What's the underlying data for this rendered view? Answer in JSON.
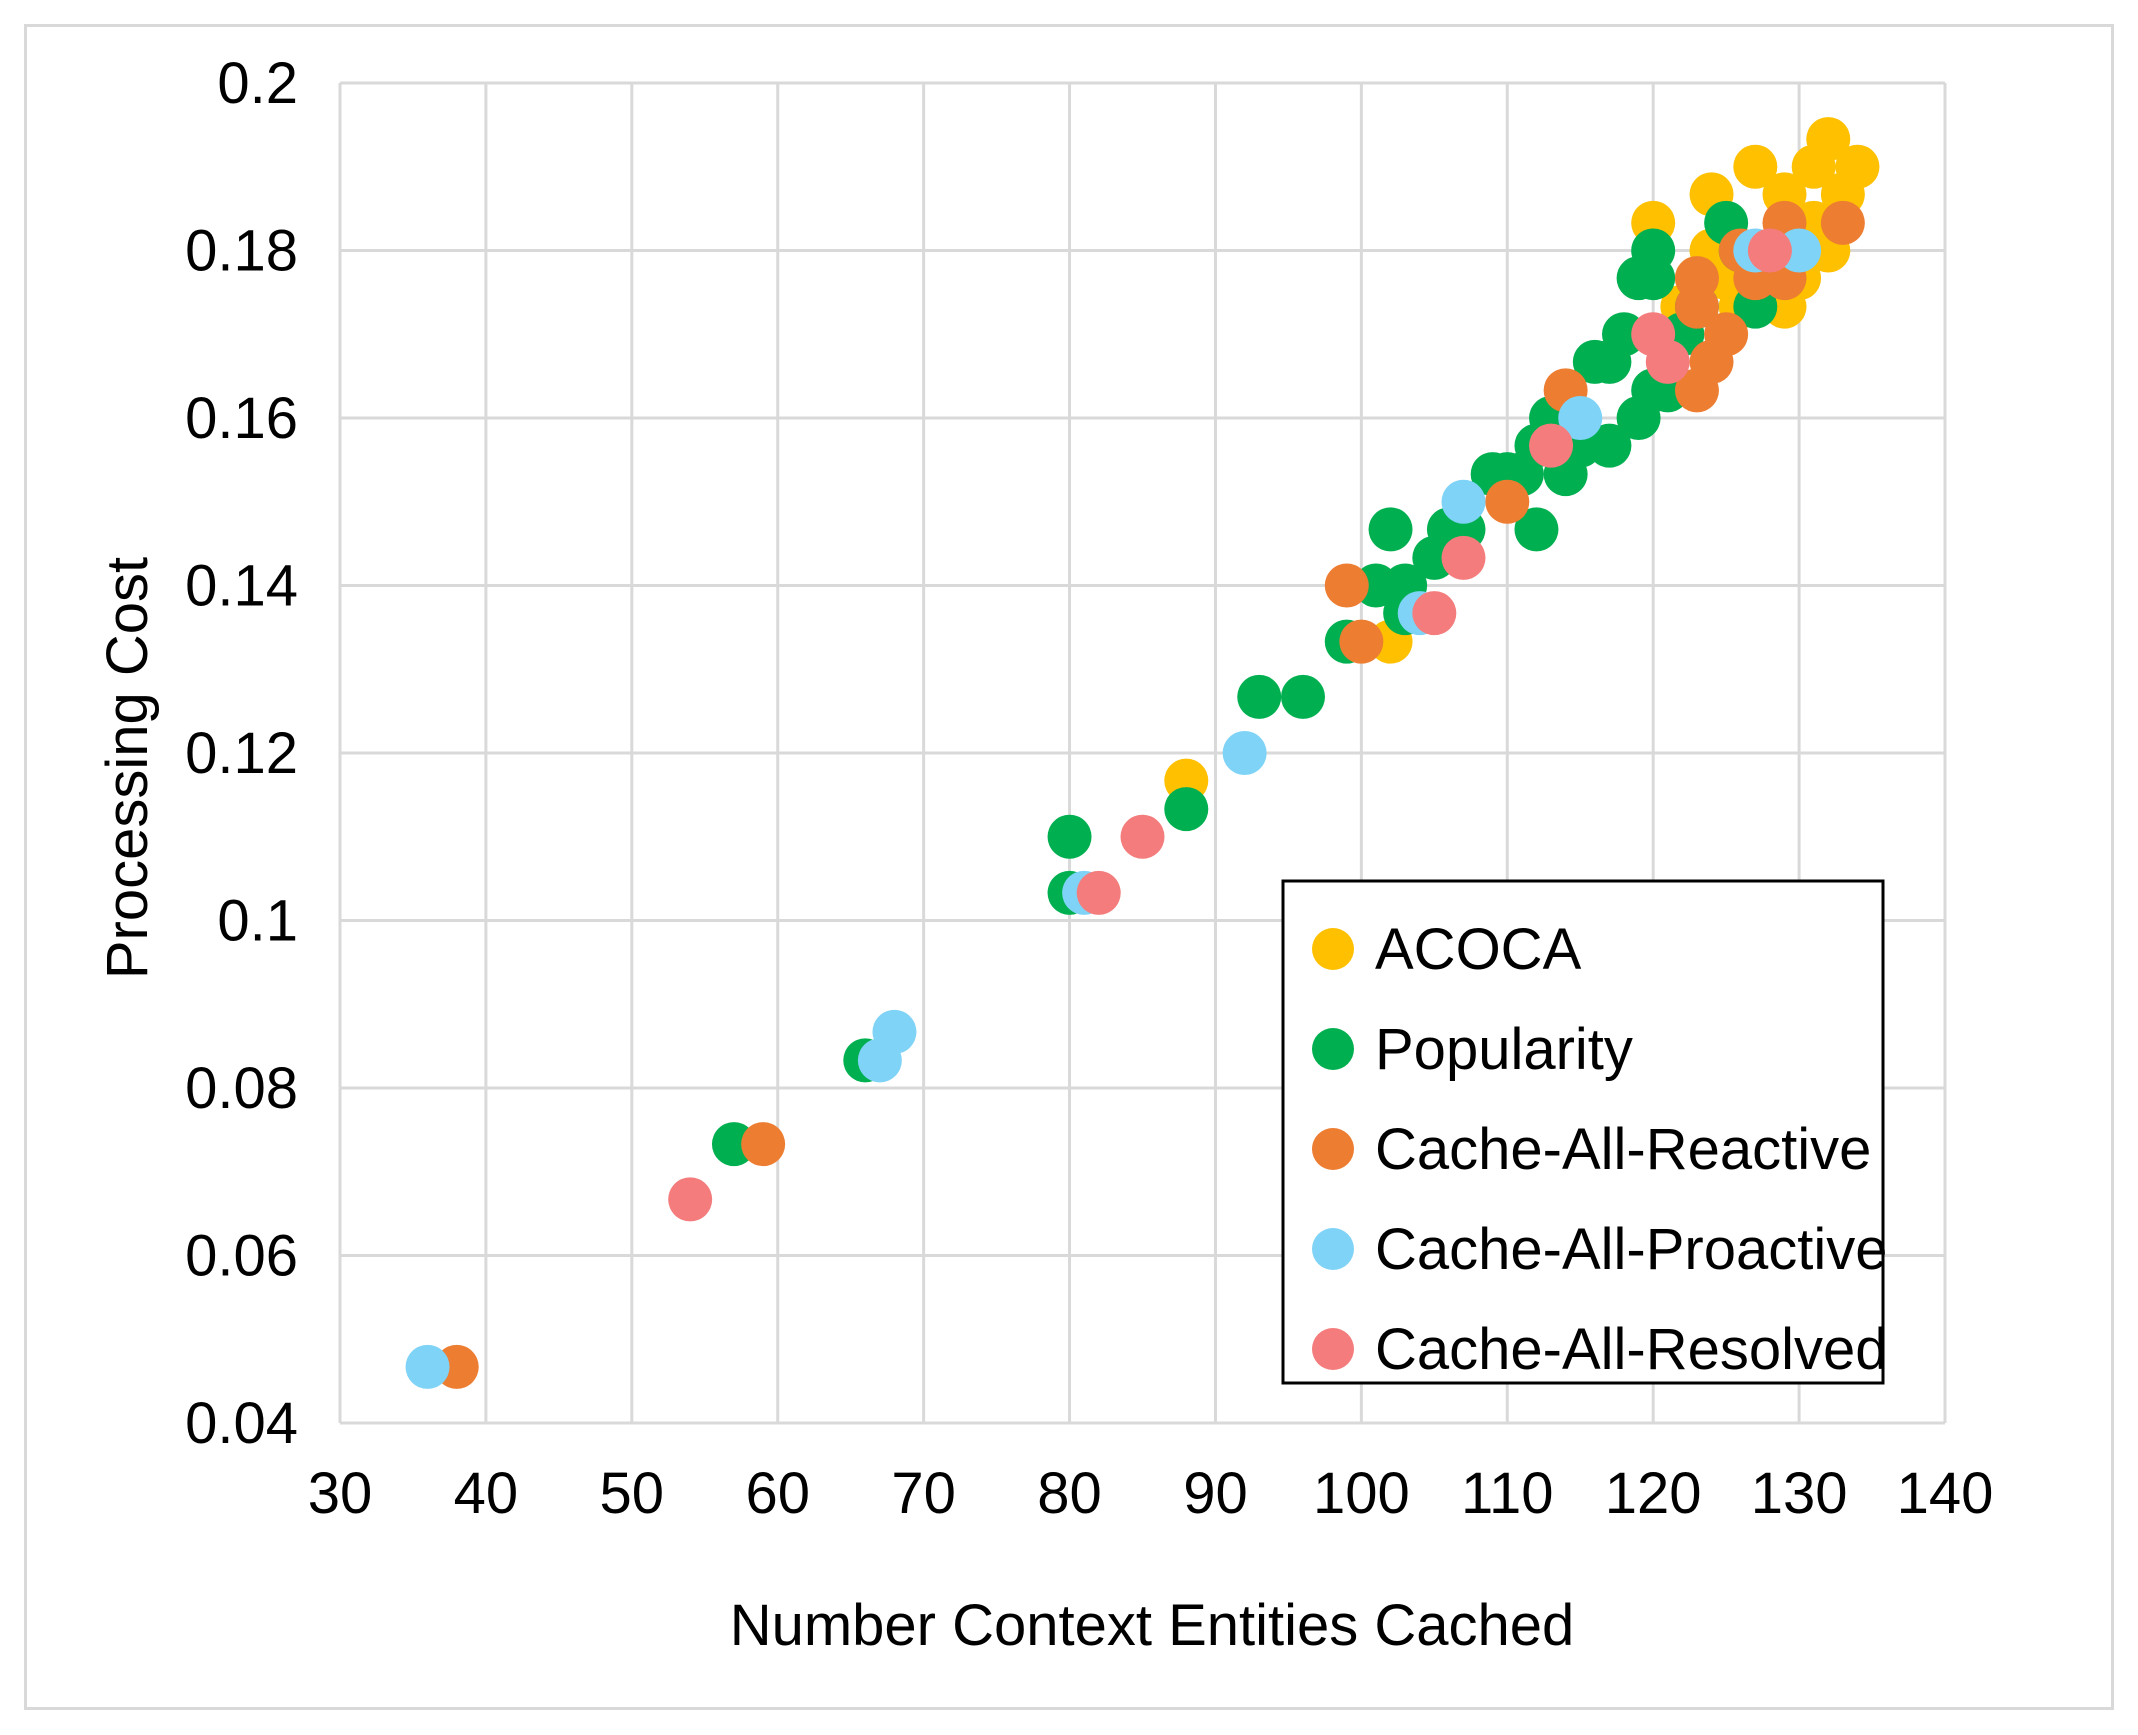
{
  "chart_data": {
    "type": "scatter",
    "title": "",
    "xlabel": "Number Context Entities Cached",
    "ylabel": "Processing Cost",
    "xlim": [
      30,
      140
    ],
    "ylim": [
      0.04,
      0.2
    ],
    "x_ticks": [
      "30",
      "40",
      "50",
      "60",
      "70",
      "80",
      "90",
      "100",
      "110",
      "120",
      "130",
      "140"
    ],
    "y_ticks": [
      "0.04",
      "0.06",
      "0.08",
      "0.1",
      "0.12",
      "0.14",
      "0.16",
      "0.18",
      "0.2"
    ],
    "x_tick_values": [
      30,
      40,
      50,
      60,
      70,
      80,
      90,
      100,
      110,
      120,
      130,
      140
    ],
    "y_tick_values": [
      0.04,
      0.06,
      0.08,
      0.1,
      0.12,
      0.14,
      0.16,
      0.18,
      0.2
    ],
    "grid": true,
    "legend_position": "bottom-right",
    "series": [
      {
        "name": "ACOCA",
        "color": "#FFC000",
        "points": [
          [
            88,
            0.1167
          ],
          [
            102,
            0.1333
          ],
          [
            120,
            0.1833
          ],
          [
            122,
            0.1733
          ],
          [
            123,
            0.1767
          ],
          [
            124,
            0.18
          ],
          [
            124,
            0.1867
          ],
          [
            125,
            0.1767
          ],
          [
            126,
            0.1733
          ],
          [
            126,
            0.18
          ],
          [
            127,
            0.19
          ],
          [
            127,
            0.1767
          ],
          [
            128,
            0.18
          ],
          [
            129,
            0.1867
          ],
          [
            129,
            0.1733
          ],
          [
            130,
            0.18
          ],
          [
            130,
            0.1767
          ],
          [
            131,
            0.19
          ],
          [
            131,
            0.1833
          ],
          [
            132,
            0.1933
          ],
          [
            132,
            0.18
          ],
          [
            133,
            0.1867
          ],
          [
            134,
            0.19
          ]
        ]
      },
      {
        "name": "Popularity",
        "color": "#00B050",
        "points": [
          [
            57,
            0.0733
          ],
          [
            66,
            0.0833
          ],
          [
            80,
            0.1033
          ],
          [
            80,
            0.11
          ],
          [
            88,
            0.1133
          ],
          [
            93,
            0.1267
          ],
          [
            96,
            0.1267
          ],
          [
            99,
            0.1333
          ],
          [
            101,
            0.14
          ],
          [
            102,
            0.1467
          ],
          [
            103,
            0.1367
          ],
          [
            103,
            0.14
          ],
          [
            105,
            0.1433
          ],
          [
            106,
            0.1467
          ],
          [
            107,
            0.1467
          ],
          [
            109,
            0.1533
          ],
          [
            110,
            0.1533
          ],
          [
            111,
            0.1533
          ],
          [
            112,
            0.1567
          ],
          [
            112,
            0.1467
          ],
          [
            113,
            0.16
          ],
          [
            113,
            0.1567
          ],
          [
            114,
            0.1533
          ],
          [
            114,
            0.16
          ],
          [
            115,
            0.1567
          ],
          [
            116,
            0.1667
          ],
          [
            117,
            0.1567
          ],
          [
            117,
            0.1667
          ],
          [
            118,
            0.17
          ],
          [
            119,
            0.16
          ],
          [
            119,
            0.1767
          ],
          [
            120,
            0.18
          ],
          [
            120,
            0.1767
          ],
          [
            120,
            0.1633
          ],
          [
            121,
            0.1633
          ],
          [
            122,
            0.17
          ],
          [
            123,
            0.1733
          ],
          [
            125,
            0.1833
          ],
          [
            126,
            0.18
          ],
          [
            127,
            0.1733
          ]
        ]
      },
      {
        "name": "Cache-All-Reactive",
        "color": "#ED7D31",
        "points": [
          [
            38,
            0.0467
          ],
          [
            59,
            0.0733
          ],
          [
            99,
            0.14
          ],
          [
            100,
            0.1333
          ],
          [
            110,
            0.15
          ],
          [
            114,
            0.1633
          ],
          [
            123,
            0.1767
          ],
          [
            123,
            0.1733
          ],
          [
            123,
            0.1633
          ],
          [
            124,
            0.1667
          ],
          [
            125,
            0.17
          ],
          [
            126,
            0.18
          ],
          [
            127,
            0.1767
          ],
          [
            129,
            0.1833
          ],
          [
            129,
            0.1767
          ],
          [
            133,
            0.1833
          ]
        ]
      },
      {
        "name": "Cache-All-Proactive",
        "color": "#7FD3F7",
        "points": [
          [
            36,
            0.0467
          ],
          [
            67,
            0.0833
          ],
          [
            68,
            0.0867
          ],
          [
            81,
            0.1033
          ],
          [
            92,
            0.12
          ],
          [
            104,
            0.1367
          ],
          [
            107,
            0.15
          ],
          [
            115,
            0.16
          ],
          [
            127,
            0.18
          ],
          [
            130,
            0.18
          ]
        ]
      },
      {
        "name": "Cache-All-Resolved",
        "color": "#F47C7C",
        "points": [
          [
            54,
            0.0667
          ],
          [
            82,
            0.1033
          ],
          [
            85,
            0.11
          ],
          [
            105,
            0.1367
          ],
          [
            107,
            0.1433
          ],
          [
            113,
            0.1567
          ],
          [
            120,
            0.17
          ],
          [
            121,
            0.1667
          ],
          [
            128,
            0.18
          ]
        ]
      }
    ]
  }
}
